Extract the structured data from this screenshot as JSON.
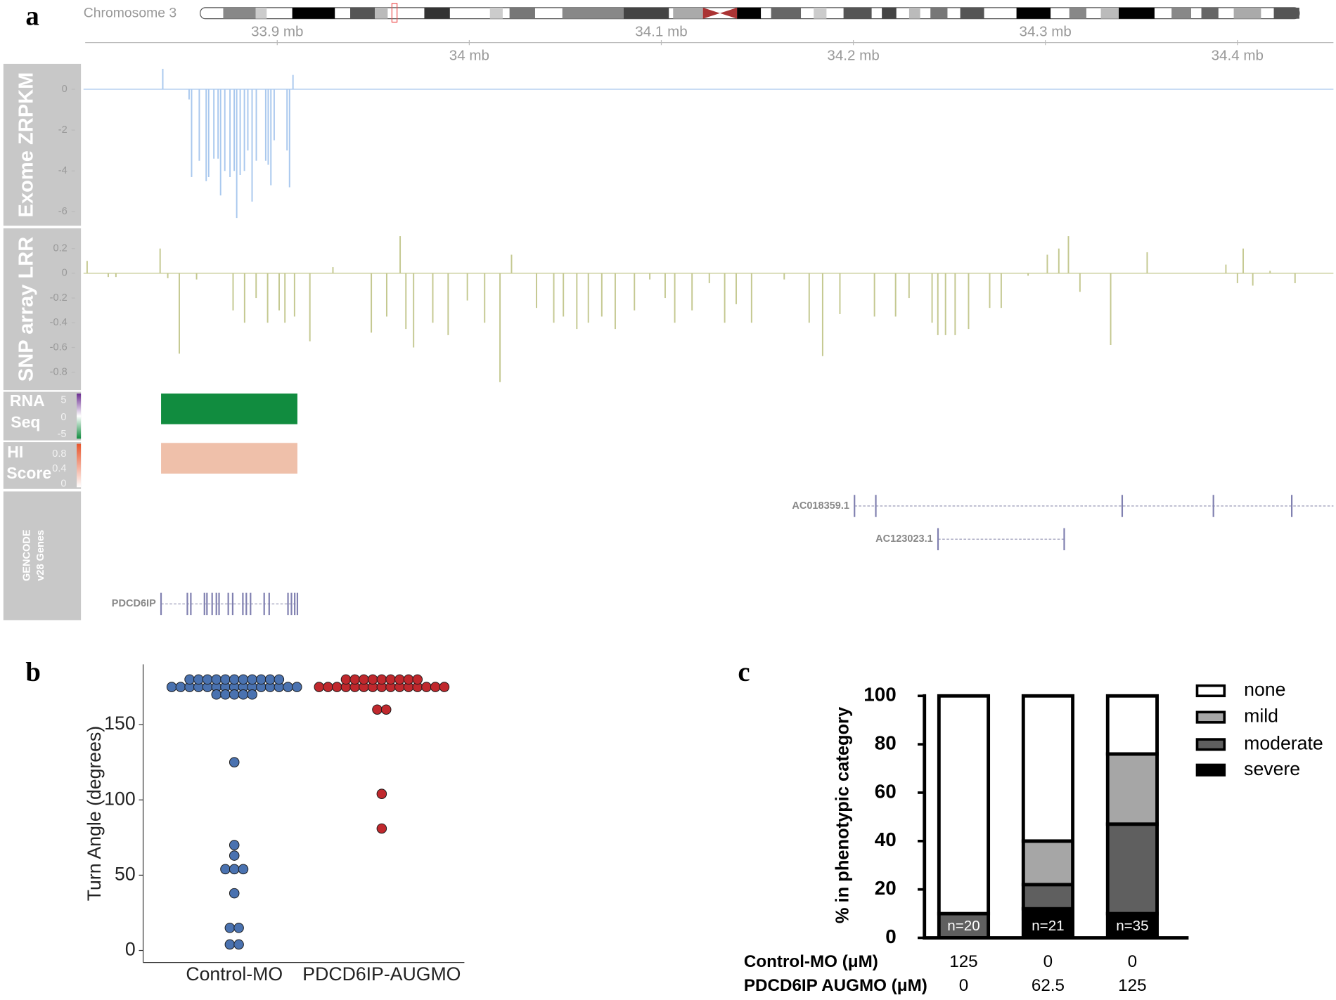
{
  "chart_data": [
    {
      "type": "genome-browser",
      "panel": "a",
      "chromosome": "Chromosome 3",
      "xlim": [
        33.8,
        34.45
      ],
      "xticks": [
        {
          "value": 33.9,
          "label": "33.9 mb"
        },
        {
          "value": 34.0,
          "label": "34 mb"
        },
        {
          "value": 34.1,
          "label": "34.1 mb"
        },
        {
          "value": 34.2,
          "label": "34.2 mb"
        },
        {
          "value": 34.3,
          "label": "34.3 mb"
        },
        {
          "value": 34.4,
          "label": "34.4 mb"
        }
      ],
      "tracks": [
        {
          "type": "bar",
          "label_lines": [
            "Exome ZRPKM"
          ],
          "color": "#a9c8ee",
          "ylim": [
            -6.6,
            1.2
          ],
          "yticks": [
            0,
            -2,
            -4,
            -6
          ],
          "x": [
            33.8404,
            33.8541,
            33.8554,
            33.8594,
            33.863,
            33.8643,
            33.867,
            33.8692,
            33.8705,
            33.8727,
            33.8754,
            33.8776,
            33.8789,
            33.8807,
            33.8829,
            33.8847,
            33.8869,
            33.8891,
            33.894,
            33.8953,
            33.8967,
            33.8984,
            33.9051,
            33.9064,
            33.9082
          ],
          "values": [
            1.0,
            -0.5,
            -4.3,
            -3.5,
            -4.5,
            -4.3,
            -3.4,
            -3.4,
            -5.2,
            -4.0,
            -4.3,
            -4.0,
            -6.3,
            -4.2,
            -4.0,
            -3.0,
            -5.5,
            -3.5,
            -3.5,
            -3.7,
            -4.7,
            -2.5,
            -3.0,
            -4.8,
            0.7
          ]
        },
        {
          "type": "bar",
          "label_lines": [
            "SNP array LRR"
          ],
          "color": "#c4c890",
          "ylim": [
            -0.9,
            0.35
          ],
          "yticks": [
            0.2,
            0,
            -0.2,
            -0.4,
            -0.6,
            -0.8
          ],
          "x": [
            33.801,
            33.812,
            33.816,
            33.839,
            33.843,
            33.849,
            33.858,
            33.877,
            33.883,
            33.889,
            33.895,
            33.901,
            33.904,
            33.909,
            33.917,
            33.929,
            33.949,
            33.957,
            33.964,
            33.967,
            33.971,
            33.981,
            33.989,
            33.999,
            34.008,
            34.016,
            34.022,
            34.035,
            34.044,
            34.049,
            34.056,
            34.062,
            34.069,
            34.076,
            34.086,
            34.094,
            34.102,
            34.107,
            34.116,
            34.125,
            34.133,
            34.139,
            34.147,
            34.164,
            34.177,
            34.184,
            34.193,
            34.211,
            34.222,
            34.229,
            34.241,
            34.244,
            34.248,
            34.253,
            34.26,
            34.271,
            34.277,
            34.291,
            34.301,
            34.307,
            34.312,
            34.318,
            34.334,
            34.353,
            34.394,
            34.4,
            34.403,
            34.408,
            34.417,
            34.43
          ],
          "values": [
            0.1,
            -0.03,
            -0.03,
            0.2,
            -0.04,
            -0.65,
            -0.05,
            -0.3,
            -0.4,
            -0.2,
            -0.4,
            -0.3,
            -0.4,
            -0.35,
            -0.55,
            0.05,
            -0.48,
            -0.35,
            0.3,
            -0.45,
            -0.6,
            -0.4,
            -0.5,
            -0.22,
            -0.4,
            -0.88,
            0.15,
            -0.28,
            -0.4,
            -0.35,
            -0.45,
            -0.4,
            -0.35,
            -0.45,
            -0.3,
            -0.05,
            -0.2,
            -0.4,
            -0.3,
            -0.08,
            -0.4,
            -0.25,
            -0.4,
            -0.05,
            -0.4,
            -0.67,
            -0.33,
            -0.35,
            -0.35,
            -0.2,
            -0.4,
            -0.5,
            -0.5,
            -0.5,
            -0.45,
            -0.28,
            -0.28,
            -0.02,
            0.15,
            0.2,
            0.3,
            -0.15,
            -0.58,
            0.17,
            0.07,
            -0.08,
            0.2,
            -0.1,
            0.02,
            -0.08
          ]
        },
        {
          "type": "region",
          "label_lines": [
            "RNA",
            "Seq"
          ],
          "color": "#118c3f",
          "scale_ticks": [
            5,
            0,
            -5
          ],
          "regions": [
            {
              "start": 33.8395,
              "end": 33.9105
            }
          ]
        },
        {
          "type": "region",
          "label_lines": [
            "HI",
            "Score"
          ],
          "color": "#efc0aa",
          "scale_ticks": [
            0.8,
            0.4,
            0
          ],
          "regions": [
            {
              "start": 33.8395,
              "end": 33.9105
            }
          ]
        },
        {
          "type": "genes",
          "label_lines": [
            "GENCODE",
            "v28 Genes"
          ],
          "genes": [
            {
              "name": "AC018359.1",
              "start": 34.2006,
              "end": 34.45,
              "exons": [
                34.2006,
                34.2117,
                34.34,
                34.3875,
                34.4283
              ]
            },
            {
              "name": "AC123023.1",
              "start": 34.2441,
              "end": 34.3098,
              "exons": [
                34.2441,
                34.3098
              ]
            },
            {
              "name": "PDCD6IP",
              "start": 33.8395,
              "end": 33.9105,
              "exons": [
                33.8395,
                33.8532,
                33.855,
                33.8621,
                33.8634,
                33.8661,
                33.8683,
                33.8697,
                33.8745,
                33.8768,
                33.8821,
                33.8839,
                33.8861,
                33.8932,
                33.8958,
                33.9056,
                33.9074,
                33.9091,
                33.9105
              ]
            }
          ]
        }
      ]
    },
    {
      "type": "dot",
      "panel": "b",
      "y_label": "Turn Angle (degrees)",
      "categories": [
        "Control-MO",
        "PDCD6IP-AUGMO"
      ],
      "colors": [
        "#4a72b0",
        "#c0282d"
      ],
      "ylim": [
        -8,
        190
      ],
      "yticks": [
        0,
        50,
        100,
        150
      ],
      "values": [
        [
          175,
          175,
          175,
          175,
          175,
          175,
          175,
          175,
          175,
          175,
          175,
          175,
          175,
          175,
          175,
          180,
          180,
          180,
          180,
          180,
          180,
          180,
          180,
          180,
          180,
          180,
          170,
          170,
          170,
          170,
          170,
          125,
          70,
          63,
          54,
          54,
          54,
          38,
          15,
          15,
          4,
          4
        ],
        [
          175,
          175,
          175,
          175,
          175,
          175,
          175,
          175,
          175,
          175,
          175,
          175,
          175,
          175,
          175,
          180,
          180,
          180,
          180,
          180,
          180,
          180,
          180,
          180,
          160,
          160,
          104,
          81
        ]
      ]
    },
    {
      "type": "stacked-bar",
      "panel": "c",
      "y_label": "% in phenotypic category",
      "ylim": [
        0,
        100
      ],
      "yticks": [
        0,
        20,
        40,
        60,
        80,
        100
      ],
      "series": [
        {
          "name": "severe",
          "color": "#000000",
          "values": [
            0,
            12,
            10
          ]
        },
        {
          "name": "moderate",
          "color": "#5f5f5f",
          "values": [
            10,
            10,
            37
          ]
        },
        {
          "name": "mild",
          "color": "#a6a6a6",
          "values": [
            0,
            18,
            29
          ]
        },
        {
          "name": "none",
          "color": "#ffffff",
          "values": [
            90,
            60,
            24
          ]
        }
      ],
      "n_labels": [
        "n=20",
        "n=21",
        "n=35"
      ],
      "table": [
        {
          "label": "Control-MO (μM)",
          "values": [
            125,
            0,
            0
          ]
        },
        {
          "label": "PDCD6IP AUGMO (μM)",
          "values": [
            0,
            62.5,
            125
          ]
        }
      ]
    }
  ]
}
